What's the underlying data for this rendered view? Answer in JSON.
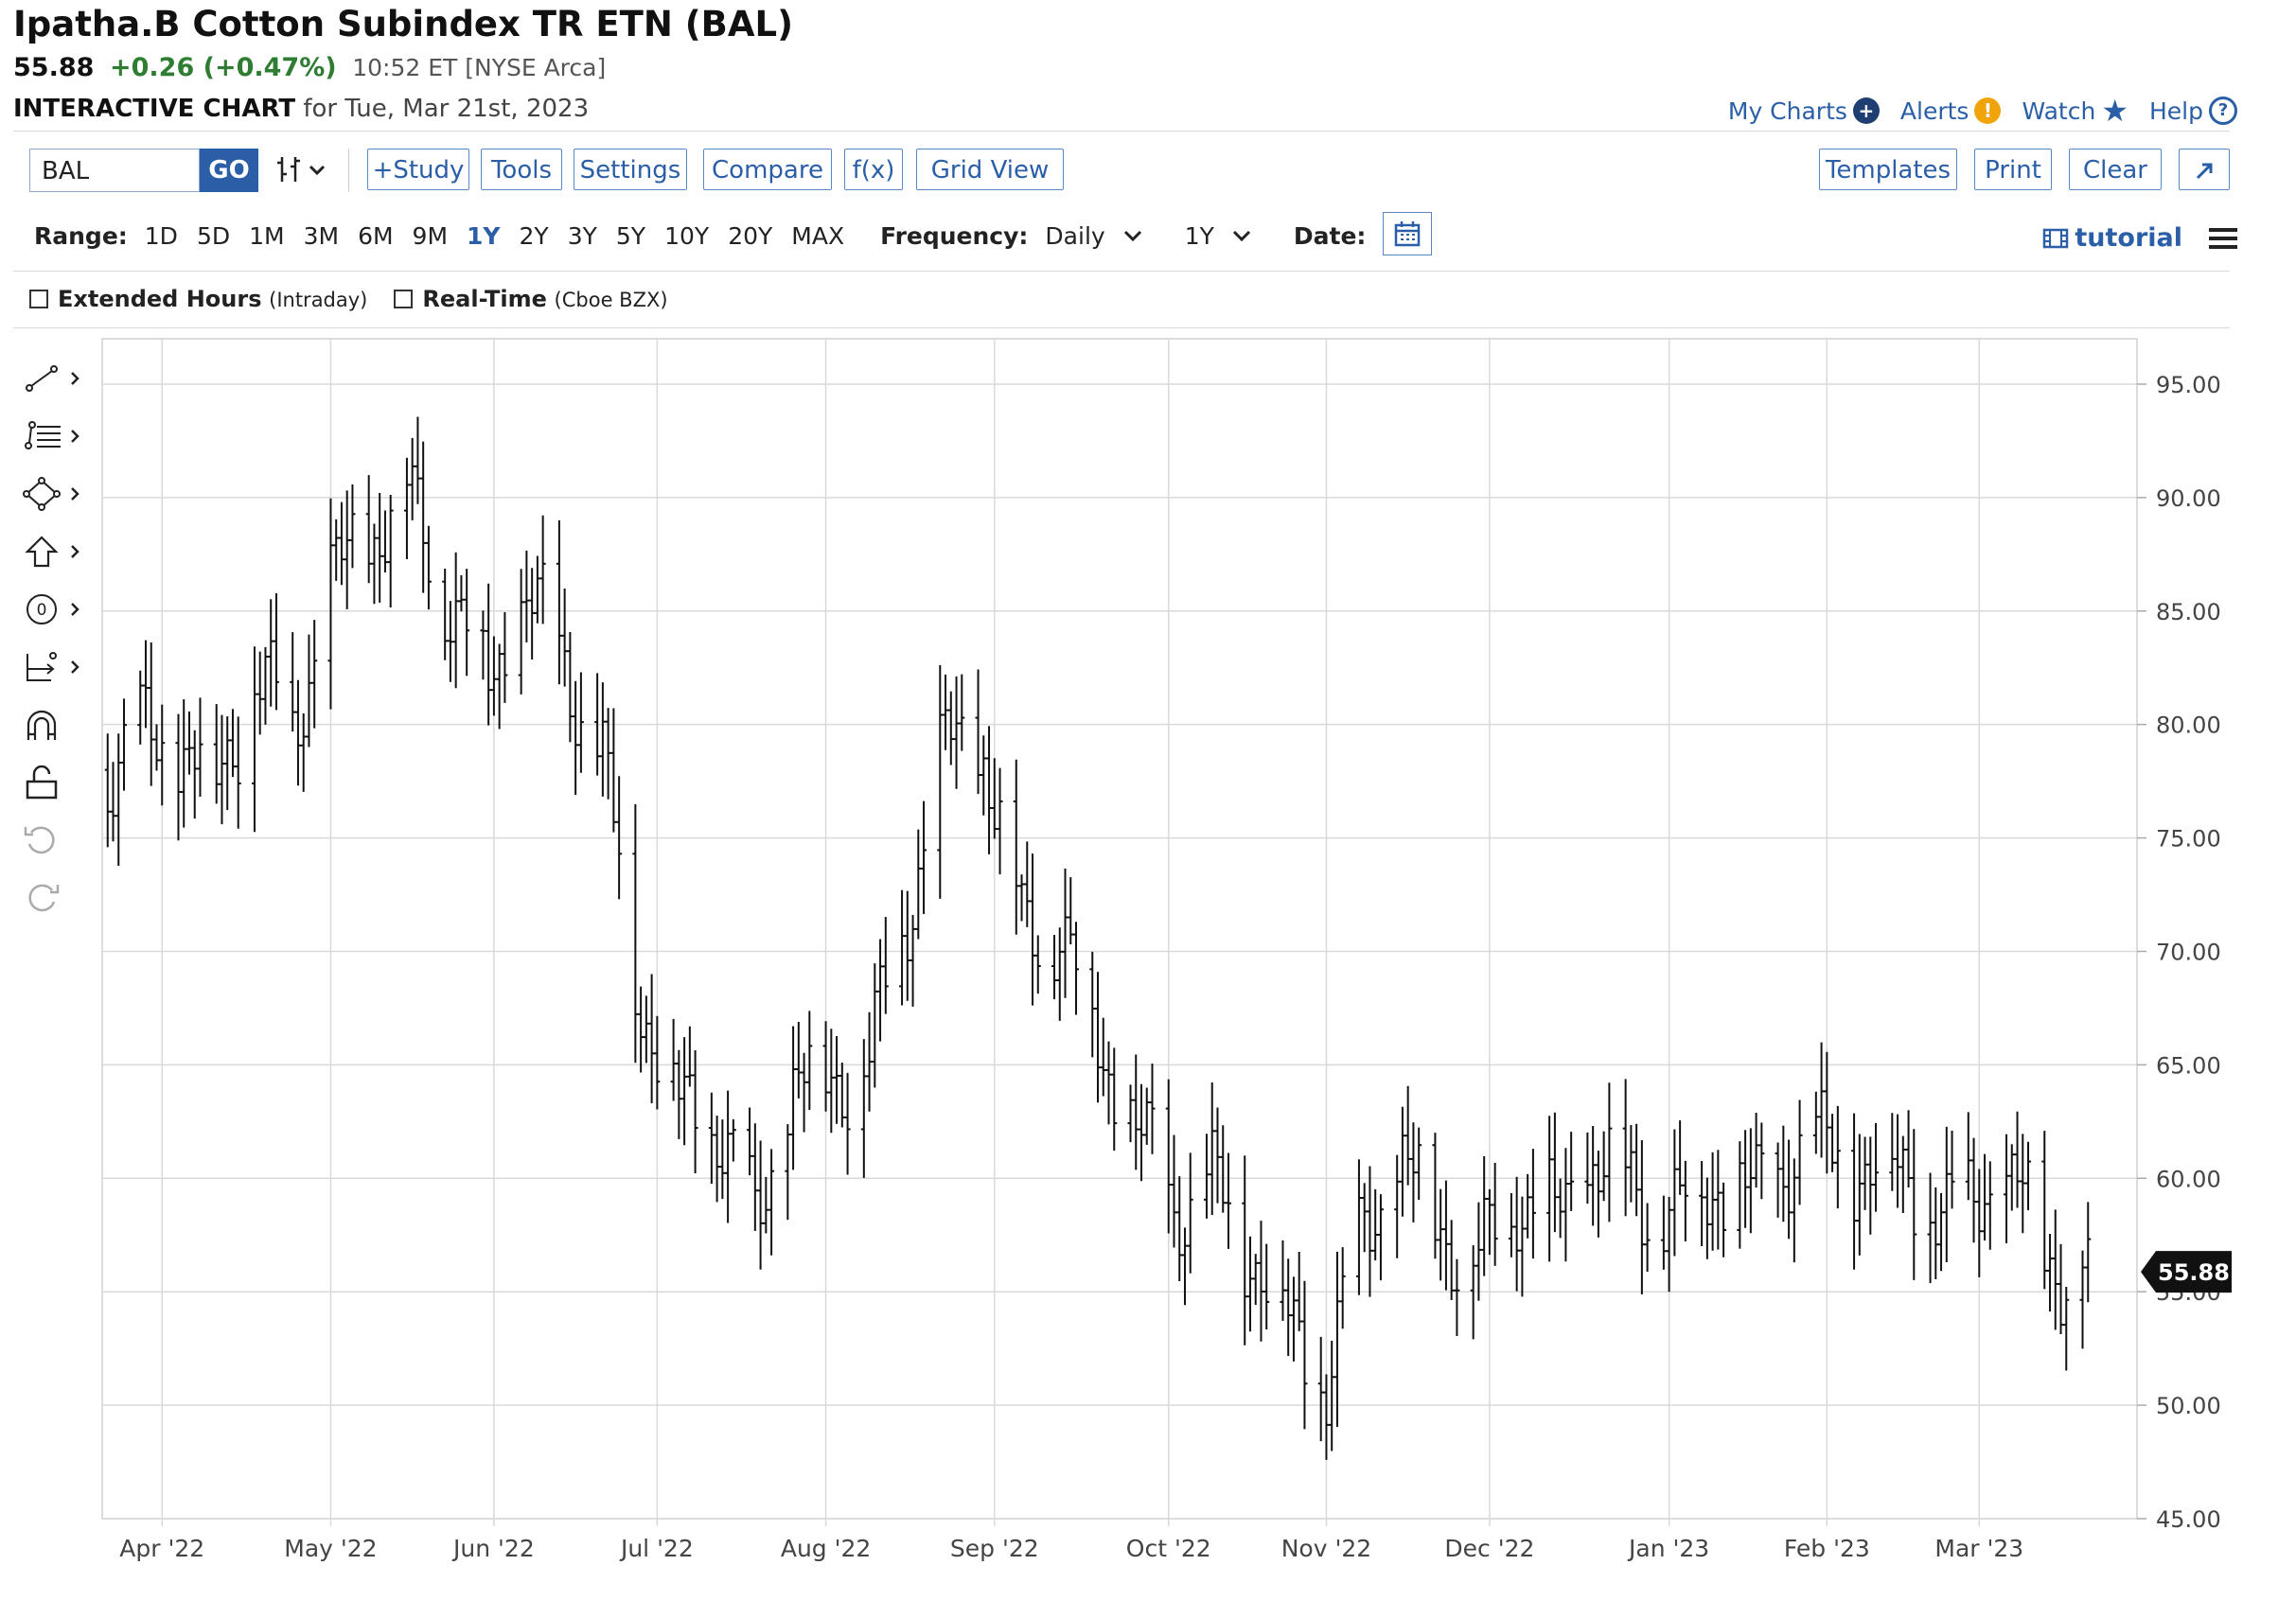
{
  "header": {
    "title": "Ipatha.B Cotton Subindex TR ETN (BAL)",
    "last_price": "55.88",
    "change": "+0.26 (+0.47%)",
    "time_exchange": "10:52 ET [NYSE Arca]",
    "chart_label": "INTERACTIVE CHART",
    "chart_date": "for Tue, Mar 21st, 2023"
  },
  "top_links": {
    "my_charts": "My Charts",
    "alerts": "Alerts",
    "watch": "Watch",
    "help": "Help"
  },
  "toolbar": {
    "symbol_value": "BAL",
    "go_label": "GO",
    "study_label": "+Study",
    "tools_label": "Tools",
    "settings_label": "Settings",
    "compare_label": "Compare",
    "fx_label": "f(x)",
    "grid_view_label": "Grid View",
    "templates_label": "Templates",
    "print_label": "Print",
    "clear_label": "Clear"
  },
  "range_bar": {
    "range_label": "Range:",
    "ranges": [
      "1D",
      "5D",
      "1M",
      "3M",
      "6M",
      "9M",
      "1Y",
      "2Y",
      "3Y",
      "5Y",
      "10Y",
      "20Y",
      "MAX"
    ],
    "selected_range": "1Y",
    "frequency_label": "Frequency:",
    "frequency_value": "Daily",
    "period_value": "1Y",
    "date_label": "Date:",
    "tutorial_label": "tutorial"
  },
  "options": {
    "extended_hours_label": "Extended Hours",
    "extended_hours_note": "(Intraday)",
    "realtime_label": "Real-Time",
    "realtime_note": "(Cboe BZX)"
  },
  "colors": {
    "accent": "#2a5fa8",
    "positive": "#2e7d32",
    "bars": "#111111",
    "alert": "#f0a30a"
  },
  "chart_data": {
    "type": "ohlc",
    "title": "",
    "xlabel": "",
    "ylabel": "",
    "ylim": [
      45,
      97
    ],
    "y_ticks": [
      45,
      50,
      55,
      60,
      65,
      70,
      75,
      80,
      85,
      90,
      95
    ],
    "y_tick_labels": [
      "45.00",
      "50.00",
      "55.00",
      "60.00",
      "65.00",
      "70.00",
      "75.00",
      "80.00",
      "85.00",
      "90.00",
      "95.00"
    ],
    "x_ticks": [
      {
        "label": "Apr '22",
        "date": "2022-04-01"
      },
      {
        "label": "May '22",
        "date": "2022-05-02"
      },
      {
        "label": "Jun '22",
        "date": "2022-06-01"
      },
      {
        "label": "Jul '22",
        "date": "2022-07-01"
      },
      {
        "label": "Aug '22",
        "date": "2022-08-01"
      },
      {
        "label": "Sep '22",
        "date": "2022-09-01"
      },
      {
        "label": "Oct '22",
        "date": "2022-10-03"
      },
      {
        "label": "Nov '22",
        "date": "2022-11-01"
      },
      {
        "label": "Dec '22",
        "date": "2022-12-01"
      },
      {
        "label": "Jan '23",
        "date": "2023-01-03"
      },
      {
        "label": "Feb '23",
        "date": "2023-02-01"
      },
      {
        "label": "Mar '23",
        "date": "2023-03-01"
      }
    ],
    "x_range": [
      "2022-03-21",
      "2023-03-30"
    ],
    "last_price_label": "55.88",
    "grid": true,
    "series": [
      {
        "values": [
          {
            "date": "2022-03-22",
            "close": 78
          },
          {
            "date": "2022-03-28",
            "close": 79.5
          },
          {
            "date": "2022-04-04",
            "close": 79
          },
          {
            "date": "2022-04-11",
            "close": 77.5
          },
          {
            "date": "2022-04-18",
            "close": 82
          },
          {
            "date": "2022-04-25",
            "close": 80
          },
          {
            "date": "2022-05-02",
            "close": 86
          },
          {
            "date": "2022-05-09",
            "close": 88.5
          },
          {
            "date": "2022-05-16",
            "close": 90
          },
          {
            "date": "2022-05-23",
            "close": 86
          },
          {
            "date": "2022-05-31",
            "close": 82
          },
          {
            "date": "2022-06-07",
            "close": 85.5
          },
          {
            "date": "2022-06-14",
            "close": 83
          },
          {
            "date": "2022-06-21",
            "close": 78
          },
          {
            "date": "2022-06-28",
            "close": 68
          },
          {
            "date": "2022-07-05",
            "close": 63
          },
          {
            "date": "2022-07-12",
            "close": 62.5
          },
          {
            "date": "2022-07-19",
            "close": 58
          },
          {
            "date": "2022-07-26",
            "close": 64
          },
          {
            "date": "2022-08-02",
            "close": 64.5
          },
          {
            "date": "2022-08-09",
            "close": 65
          },
          {
            "date": "2022-08-16",
            "close": 72
          },
          {
            "date": "2022-08-23",
            "close": 79
          },
          {
            "date": "2022-08-30",
            "close": 79
          },
          {
            "date": "2022-09-06",
            "close": 71
          },
          {
            "date": "2022-09-13",
            "close": 71
          },
          {
            "date": "2022-09-20",
            "close": 66
          },
          {
            "date": "2022-09-27",
            "close": 62
          },
          {
            "date": "2022-10-04",
            "close": 59
          },
          {
            "date": "2022-10-11",
            "close": 59.5
          },
          {
            "date": "2022-10-18",
            "close": 57
          },
          {
            "date": "2022-10-25",
            "close": 53.5
          },
          {
            "date": "2022-11-01",
            "close": 51
          },
          {
            "date": "2022-11-08",
            "close": 58
          },
          {
            "date": "2022-11-15",
            "close": 60.5
          },
          {
            "date": "2022-11-22",
            "close": 58
          },
          {
            "date": "2022-11-29",
            "close": 56
          },
          {
            "date": "2022-12-06",
            "close": 59.5
          },
          {
            "date": "2022-12-13",
            "close": 58
          },
          {
            "date": "2022-12-20",
            "close": 61
          },
          {
            "date": "2022-12-29",
            "close": 59
          },
          {
            "date": "2023-01-05",
            "close": 58.5
          },
          {
            "date": "2023-01-12",
            "close": 60
          },
          {
            "date": "2023-01-19",
            "close": 59
          },
          {
            "date": "2023-01-26",
            "close": 61.5
          },
          {
            "date": "2023-02-02",
            "close": 61
          },
          {
            "date": "2023-02-09",
            "close": 60.5
          },
          {
            "date": "2023-02-16",
            "close": 60
          },
          {
            "date": "2023-02-23",
            "close": 58
          },
          {
            "date": "2023-03-02",
            "close": 60
          },
          {
            "date": "2023-03-09",
            "close": 59
          },
          {
            "date": "2023-03-16",
            "close": 56
          },
          {
            "date": "2023-03-21",
            "close": 55.88
          }
        ]
      }
    ]
  }
}
